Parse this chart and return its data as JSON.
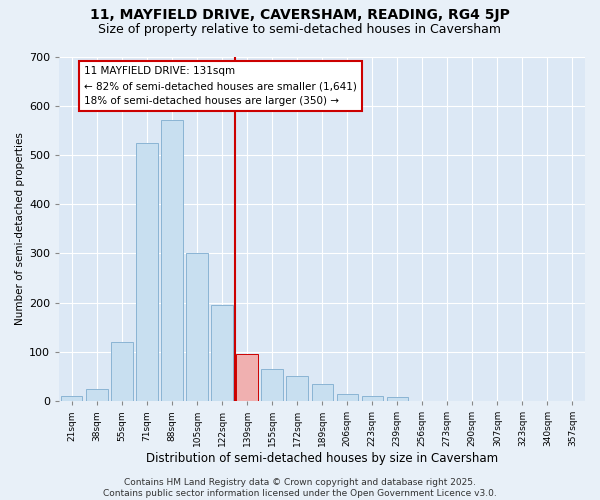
{
  "title1": "11, MAYFIELD DRIVE, CAVERSHAM, READING, RG4 5JP",
  "title2": "Size of property relative to semi-detached houses in Caversham",
  "xlabel": "Distribution of semi-detached houses by size in Caversham",
  "ylabel": "Number of semi-detached properties",
  "bar_labels": [
    "21sqm",
    "38sqm",
    "55sqm",
    "71sqm",
    "88sqm",
    "105sqm",
    "122sqm",
    "139sqm",
    "155sqm",
    "172sqm",
    "189sqm",
    "206sqm",
    "223sqm",
    "239sqm",
    "256sqm",
    "273sqm",
    "290sqm",
    "307sqm",
    "323sqm",
    "340sqm",
    "357sqm"
  ],
  "bar_values": [
    10,
    25,
    120,
    525,
    570,
    300,
    195,
    95,
    65,
    50,
    35,
    15,
    10,
    8,
    0,
    0,
    0,
    0,
    0,
    0,
    0
  ],
  "property_bin_index": 7,
  "annotation_title": "11 MAYFIELD DRIVE: 131sqm",
  "annotation_line1": "← 82% of semi-detached houses are smaller (1,641)",
  "annotation_line2": "18% of semi-detached houses are larger (350) →",
  "bar_color": "#c8dff0",
  "bar_edge_color": "#8ab4d4",
  "highlight_bar_color": "#f0b0b0",
  "highlight_bar_edge_color": "#cc0000",
  "vline_color": "#cc0000",
  "footer": "Contains HM Land Registry data © Crown copyright and database right 2025.\nContains public sector information licensed under the Open Government Licence v3.0.",
  "ylim": [
    0,
    700
  ],
  "yticks": [
    0,
    100,
    200,
    300,
    400,
    500,
    600,
    700
  ],
  "fig_bg_color": "#e8f0f8",
  "plot_bg_color": "#dce8f5"
}
